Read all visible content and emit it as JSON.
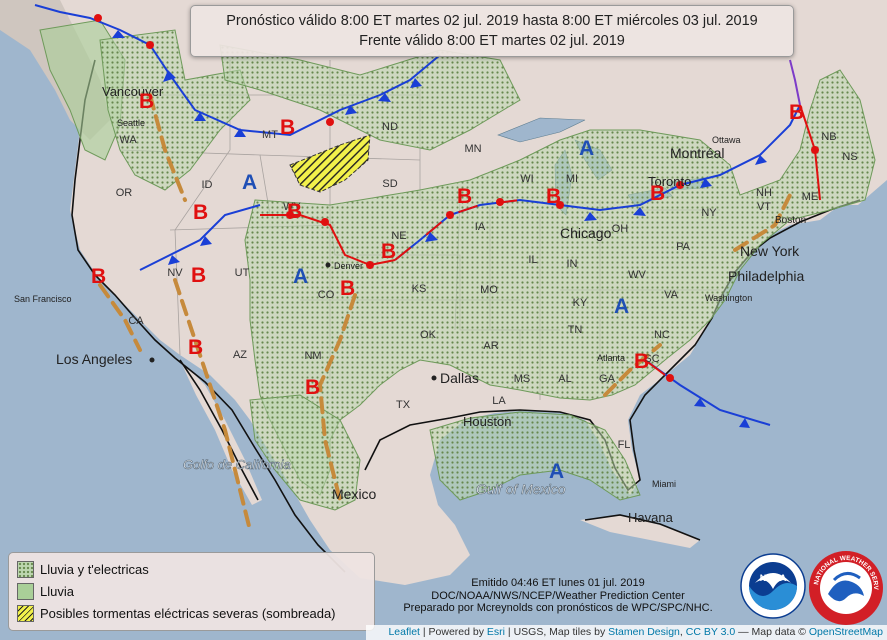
{
  "header": {
    "line1": "Pronóstico válido 8:00 ET martes 02 jul. 2019 hasta 8:00 ET miércoles 03 jul. 2019",
    "line2": "Frente válido 8:00 ET martes 02 jul. 2019"
  },
  "legend": {
    "items": [
      {
        "label": "Lluvia y t'electricas",
        "icon": "dotted-green-swatch"
      },
      {
        "label": "Lluvia",
        "icon": "solid-green-swatch"
      },
      {
        "label": "Posibles tormentas eléctricas severas (sombreada)",
        "icon": "yellow-hatched-swatch"
      }
    ]
  },
  "issued": {
    "line1": "Emitido 04:46 ET lunes 01 jul. 2019",
    "line2": "DOC/NOAA/NWS/NCEP/Weather Prediction Center",
    "line3": "Preparado por Mcreynolds con pronósticos de WPC/SPC/NHC."
  },
  "attribution": {
    "leaflet": "Leaflet",
    "powered_prefix": " | Powered by ",
    "esri": "Esri",
    "tiles_prefix": " | USGS, Map tiles by ",
    "stamen": "Stamen Design",
    "sep1": ", ",
    "cc": "CC BY 3.0",
    "data_prefix": " — Map data © ",
    "osm": "OpenStreetMap"
  },
  "pressure_centers": {
    "high_label": "A",
    "low_label": "B",
    "high_color": "#1f4fb5",
    "low_color": "#e01010"
  },
  "cities": {
    "vancouver": "Vancouver",
    "seattle": "Seattle",
    "san_francisco": "San Francisco",
    "los_angeles": "Los Angeles",
    "denver": "Denver",
    "dallas": "Dallas",
    "houston": "Houston",
    "chicago": "Chicago",
    "toronto": "Toronto",
    "montreal": "Montréal",
    "boston": "Boston",
    "new_york": "New York",
    "philadelphia": "Philadelphia",
    "washington": "Washington",
    "atlanta": "Atlanta",
    "miami": "Miami",
    "havana": "Havana",
    "mexico": "Mexico",
    "ottawa": "Ottawa"
  },
  "states": {
    "wa": "WA",
    "or": "OR",
    "ca": "CA",
    "nv": "NV",
    "id": "ID",
    "mt": "MT",
    "wy": "WY",
    "ut": "UT",
    "az": "AZ",
    "co": "CO",
    "nm": "NM",
    "nd": "ND",
    "sd": "SD",
    "ne": "NE",
    "ks": "KS",
    "ok": "OK",
    "tx": "TX",
    "mn": "MN",
    "ia": "IA",
    "mo": "MO",
    "ar": "AR",
    "la": "LA",
    "wi": "WI",
    "il": "IL",
    "ms": "MS",
    "al": "AL",
    "ga": "GA",
    "fl": "FL",
    "sc": "SC",
    "nc": "NC",
    "tn": "TN",
    "ky": "KY",
    "in": "IN",
    "oh": "OH",
    "mi": "MI",
    "wv": "WV",
    "va": "VA",
    "pa": "PA",
    "ny": "NY",
    "me": "ME",
    "nb": "NB",
    "ns": "NS",
    "nh": "NH",
    "vt": "VT"
  },
  "water": {
    "gulf_of_mexico": "Gulf of Mexico",
    "gulf_of_california": "Golfo de California"
  },
  "logos": {
    "noaa_text": "NOAA",
    "nws_text": "NATIONAL WEATHER SERVICE"
  },
  "colors": {
    "cold_front": "#1a3fd6",
    "warm_front": "#e01010",
    "trough": "#c68a3c",
    "tstorm_area": "#bdd7b0",
    "rain_area": "#a9cf98",
    "severe": "#f2f14b"
  }
}
